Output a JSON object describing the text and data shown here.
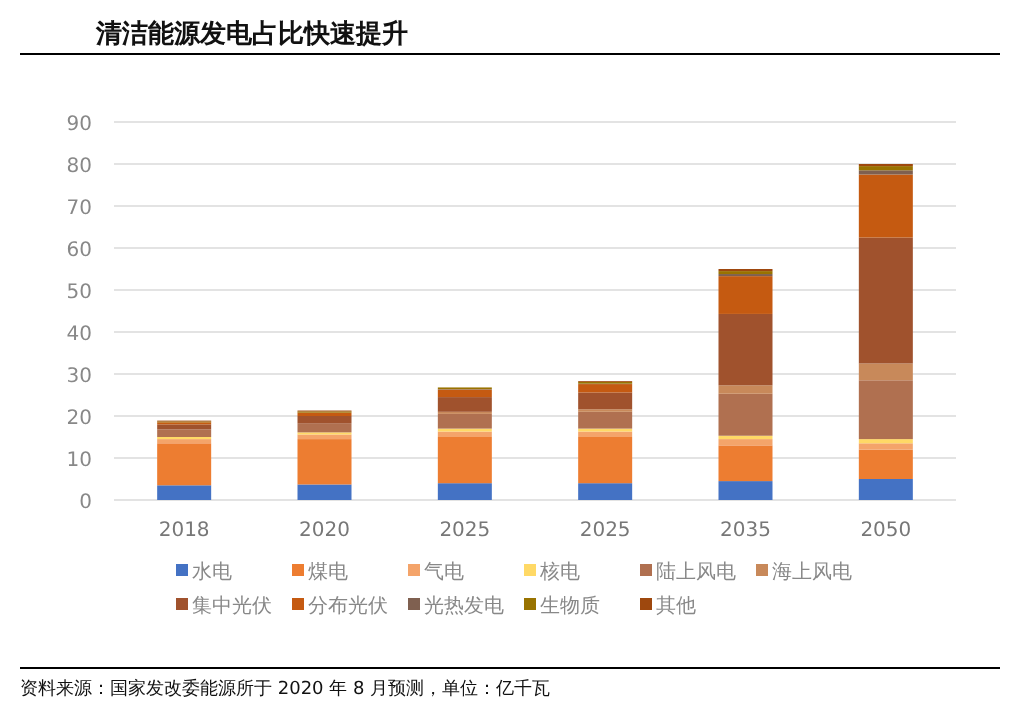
{
  "chart_data": {
    "type": "bar",
    "stacked": true,
    "title": "清洁能源发电占比快速提升",
    "annotations": [
      "资料来源：国家发改委能源所于 2020 年 8 月预测，单位：亿千瓦"
    ],
    "categories": [
      "2018",
      "2020",
      "2025",
      "2025",
      "2035",
      "2050"
    ],
    "series": [
      {
        "name": "水电",
        "color": "#4472c4",
        "values": [
          3.5,
          3.7,
          4,
          4,
          4.5,
          5
        ]
      },
      {
        "name": "煤电",
        "color": "#ed7d31",
        "values": [
          10,
          10.8,
          11,
          11,
          8.5,
          7
        ]
      },
      {
        "name": "气电",
        "color": "#f4a46a",
        "values": [
          1,
          1.1,
          1.3,
          1.3,
          1.5,
          1.5
        ]
      },
      {
        "name": "核电",
        "color": "#ffd966",
        "values": [
          0.5,
          0.5,
          0.7,
          0.7,
          0.8,
          1
        ]
      },
      {
        "name": "陆上风电",
        "color": "#b07050",
        "values": [
          1.8,
          2.2,
          3.5,
          4,
          10,
          14
        ]
      },
      {
        "name": "海上风电",
        "color": "#c8895a",
        "values": [
          null,
          null,
          0.5,
          0.6,
          2,
          4
        ]
      },
      {
        "name": "集中光伏",
        "color": "#a0522d",
        "values": [
          1.2,
          1.7,
          3.5,
          4,
          17,
          30
        ]
      },
      {
        "name": "分布光伏",
        "color": "#c55a11",
        "values": [
          0.5,
          0.8,
          1.8,
          2,
          9,
          15
        ]
      },
      {
        "name": "光热发电",
        "color": "#7f6050",
        "values": [
          0,
          0,
          0.1,
          0.1,
          0.5,
          1
        ]
      },
      {
        "name": "生物质",
        "color": "#997300",
        "values": [
          0.2,
          0.3,
          0.4,
          0.4,
          0.7,
          1
        ]
      },
      {
        "name": "其他",
        "color": "#9e480e",
        "values": [
          0.2,
          0.2,
          null,
          0.2,
          0.5,
          0.5
        ]
      }
    ],
    "ylim": [
      0,
      90
    ],
    "yticks": [
      0,
      10,
      20,
      30,
      40,
      50,
      60,
      70,
      80,
      90
    ],
    "grid": "y",
    "legend": "bottom"
  }
}
